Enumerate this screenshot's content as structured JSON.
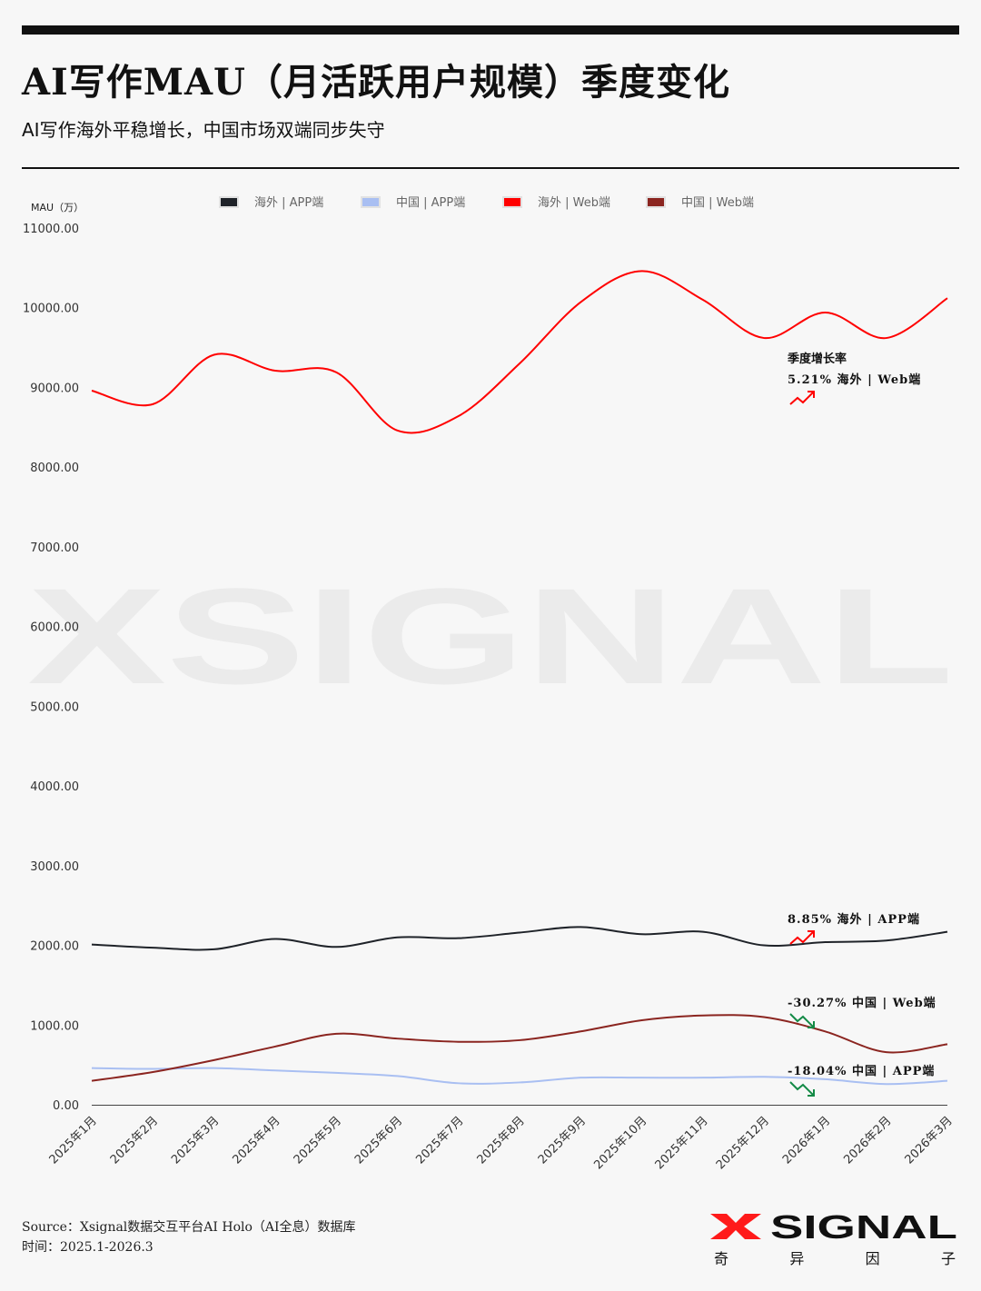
{
  "header": {
    "title": "AI写作MAU（月活跃用户规模）季度变化",
    "subtitle": "AI写作海外平稳增长，中国市场双端同步失守"
  },
  "chart_data": {
    "type": "line",
    "title": "AI写作MAU（月活跃用户规模）季度变化",
    "ylabel": "MAU（万）",
    "xlabel": "",
    "ylim": [
      0,
      11000
    ],
    "yticks": [
      "0.00",
      "1000.00",
      "2000.00",
      "3000.00",
      "4000.00",
      "5000.00",
      "6000.00",
      "7000.00",
      "8000.00",
      "9000.00",
      "10000.00",
      "11000.00"
    ],
    "categories": [
      "2025年1月",
      "2025年2月",
      "2025年3月",
      "2025年4月",
      "2025年5月",
      "2025年6月",
      "2025年7月",
      "2025年8月",
      "2025年9月",
      "2025年10月",
      "2025年11月",
      "2025年12月",
      "2026年1月",
      "2026年2月",
      "2026年3月"
    ],
    "legend_position": "top",
    "grid": false,
    "series": [
      {
        "name": "海外 | APP端",
        "color": "#1f2329",
        "values": [
          2010,
          1970,
          1950,
          2080,
          1980,
          2100,
          2090,
          2160,
          2230,
          2140,
          2170,
          2000,
          2040,
          2060,
          2170
        ]
      },
      {
        "name": "中国 | APP端",
        "color": "#a9bff2",
        "values": [
          460,
          450,
          460,
          430,
          400,
          360,
          270,
          280,
          340,
          340,
          340,
          350,
          320,
          260,
          300
        ]
      },
      {
        "name": "海外 | Web端",
        "color": "#ff0000",
        "values": [
          8960,
          8790,
          9410,
          9210,
          9190,
          8460,
          8640,
          9300,
          10070,
          10460,
          10100,
          9620,
          9940,
          9620,
          10120
        ]
      },
      {
        "name": "中国 | Web端",
        "color": "#8b2520",
        "values": [
          300,
          410,
          560,
          730,
          890,
          830,
          790,
          810,
          920,
          1060,
          1120,
          1100,
          920,
          660,
          760
        ]
      }
    ],
    "annotations": {
      "heading": "季度增长率",
      "items": [
        {
          "rate": "5.21%",
          "label": "海外 | Web端",
          "direction": "up",
          "color": "#ff0000",
          "y": 9000
        },
        {
          "rate": "8.85%",
          "label": "海外 | APP端",
          "direction": "up",
          "color": "#ff0000",
          "y": 2000
        },
        {
          "rate": "-30.27%",
          "label": "中国 | Web端",
          "direction": "down",
          "color": "#138a46",
          "y": 1100
        },
        {
          "rate": "-18.04%",
          "label": "中国 | APP端",
          "direction": "down",
          "color": "#138a46",
          "y": 250
        }
      ]
    }
  },
  "watermark": "XSIGNAL",
  "footer": {
    "source": "Source：Xsignal数据交互平台AI Holo（AI全息）数据库",
    "time": "时间：2025.1-2026.3"
  },
  "logo": {
    "text": "XSIGNAL",
    "sub": [
      "奇",
      "异",
      "因",
      "子"
    ]
  }
}
